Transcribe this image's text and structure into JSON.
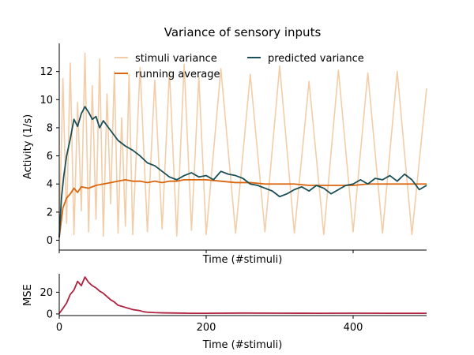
{
  "figure": {
    "title": "Variance of sensory inputs"
  },
  "colors": {
    "stimuli_variance": "#f2cda8",
    "running_average": "#d9660e",
    "predicted_variance": "#1b4f57",
    "mse": "#b0223f",
    "axis": "#000000",
    "background": "#ffffff"
  },
  "chart_data": [
    {
      "type": "line",
      "title": "Variance of sensory inputs",
      "xlabel": "Time (#stimuli)",
      "ylabel": "Activity (1/s)",
      "xlim": [
        0,
        500
      ],
      "ylim": [
        -0.7,
        14
      ],
      "x_ticks": [
        0,
        200,
        400
      ],
      "x_tick_labels_shown": false,
      "y_ticks": [
        0,
        2,
        4,
        6,
        8,
        10,
        12
      ],
      "y_tick_labels": [
        "0",
        "2",
        "4",
        "6",
        "8",
        "10",
        "12"
      ],
      "grid": false,
      "legend": "top, two columns",
      "series": [
        {
          "name": "stimuli variance",
          "style": "noisy, bounded between 0.2 and 13.3",
          "x": [
            0,
            5,
            10,
            15,
            20,
            25,
            30,
            35,
            40,
            45,
            50,
            55,
            60,
            65,
            70,
            75,
            80,
            85,
            90,
            95,
            100,
            110,
            120,
            130,
            140,
            150,
            160,
            170,
            180,
            190,
            200,
            220,
            240,
            260,
            280,
            300,
            320,
            340,
            360,
            380,
            400,
            420,
            440,
            460,
            480,
            500
          ],
          "y": [
            0.3,
            11.5,
            1.2,
            12.6,
            0.4,
            9.8,
            2.1,
            13.3,
            0.6,
            11.0,
            1.5,
            12.9,
            0.3,
            10.4,
            2.6,
            12.0,
            0.5,
            8.7,
            1.0,
            11.8,
            0.4,
            12.3,
            0.6,
            11.4,
            0.8,
            12.0,
            0.3,
            12.5,
            0.7,
            11.6,
            0.4,
            12.2,
            0.5,
            11.8,
            0.6,
            12.4,
            0.5,
            11.3,
            0.4,
            12.1,
            0.6,
            11.9,
            0.5,
            12.0,
            0.4,
            10.8
          ]
        },
        {
          "name": "running average",
          "x": [
            0,
            5,
            10,
            15,
            20,
            25,
            30,
            40,
            50,
            60,
            70,
            80,
            90,
            100,
            110,
            120,
            130,
            140,
            150,
            160,
            170,
            180,
            190,
            200,
            220,
            240,
            260,
            280,
            300,
            320,
            340,
            360,
            380,
            400,
            420,
            440,
            460,
            480,
            500
          ],
          "y": [
            0.2,
            2.3,
            3.0,
            3.3,
            3.7,
            3.4,
            3.8,
            3.7,
            3.9,
            4.0,
            4.1,
            4.2,
            4.3,
            4.2,
            4.2,
            4.1,
            4.2,
            4.1,
            4.2,
            4.2,
            4.3,
            4.3,
            4.3,
            4.3,
            4.2,
            4.1,
            4.1,
            4.0,
            4.0,
            4.0,
            3.9,
            3.9,
            3.9,
            3.9,
            4.0,
            4.0,
            4.0,
            4.0,
            4.0
          ]
        },
        {
          "name": "predicted variance",
          "x": [
            0,
            3,
            6,
            10,
            15,
            20,
            25,
            30,
            35,
            40,
            45,
            50,
            55,
            60,
            70,
            80,
            90,
            100,
            110,
            120,
            130,
            140,
            150,
            160,
            170,
            180,
            190,
            200,
            210,
            220,
            230,
            240,
            250,
            260,
            270,
            280,
            290,
            300,
            310,
            320,
            330,
            340,
            350,
            360,
            370,
            380,
            390,
            400,
            410,
            420,
            430,
            440,
            450,
            460,
            470,
            480,
            490,
            500
          ],
          "y": [
            0.2,
            3.0,
            4.5,
            6.0,
            7.2,
            8.6,
            8.1,
            9.0,
            9.5,
            9.1,
            8.6,
            8.8,
            8.0,
            8.5,
            7.8,
            7.1,
            6.7,
            6.4,
            6.0,
            5.5,
            5.3,
            4.9,
            4.5,
            4.3,
            4.6,
            4.8,
            4.5,
            4.6,
            4.3,
            4.9,
            4.7,
            4.6,
            4.4,
            4.0,
            3.9,
            3.7,
            3.5,
            3.1,
            3.3,
            3.6,
            3.8,
            3.5,
            3.9,
            3.7,
            3.3,
            3.6,
            3.9,
            4.0,
            4.3,
            4.0,
            4.4,
            4.3,
            4.6,
            4.2,
            4.7,
            4.3,
            3.6,
            3.9
          ]
        }
      ]
    },
    {
      "type": "line",
      "xlabel": "Time (#stimuli)",
      "ylabel": "MSE",
      "xlim": [
        0,
        500
      ],
      "ylim": [
        -1.5,
        37
      ],
      "x_ticks": [
        0,
        200,
        400
      ],
      "x_tick_labels": [
        "0",
        "200",
        "400"
      ],
      "y_ticks": [
        0,
        20
      ],
      "y_tick_labels": [
        "0",
        "20"
      ],
      "grid": false,
      "series": [
        {
          "x": [
            0,
            5,
            10,
            15,
            20,
            25,
            30,
            35,
            40,
            45,
            50,
            55,
            60,
            65,
            70,
            75,
            80,
            85,
            90,
            95,
            100,
            105,
            110,
            115,
            120,
            130,
            140,
            160,
            180,
            200,
            250,
            300,
            350,
            400,
            450,
            500
          ],
          "y": [
            0.5,
            5,
            10,
            18,
            22,
            30,
            26,
            34,
            29,
            26,
            24,
            21,
            19,
            16,
            13,
            11,
            8,
            7,
            6,
            5,
            4,
            3.5,
            3,
            2,
            1.6,
            1.2,
            1.0,
            0.8,
            0.6,
            0.6,
            0.8,
            0.7,
            0.6,
            0.7,
            0.6,
            0.6
          ]
        }
      ]
    }
  ]
}
